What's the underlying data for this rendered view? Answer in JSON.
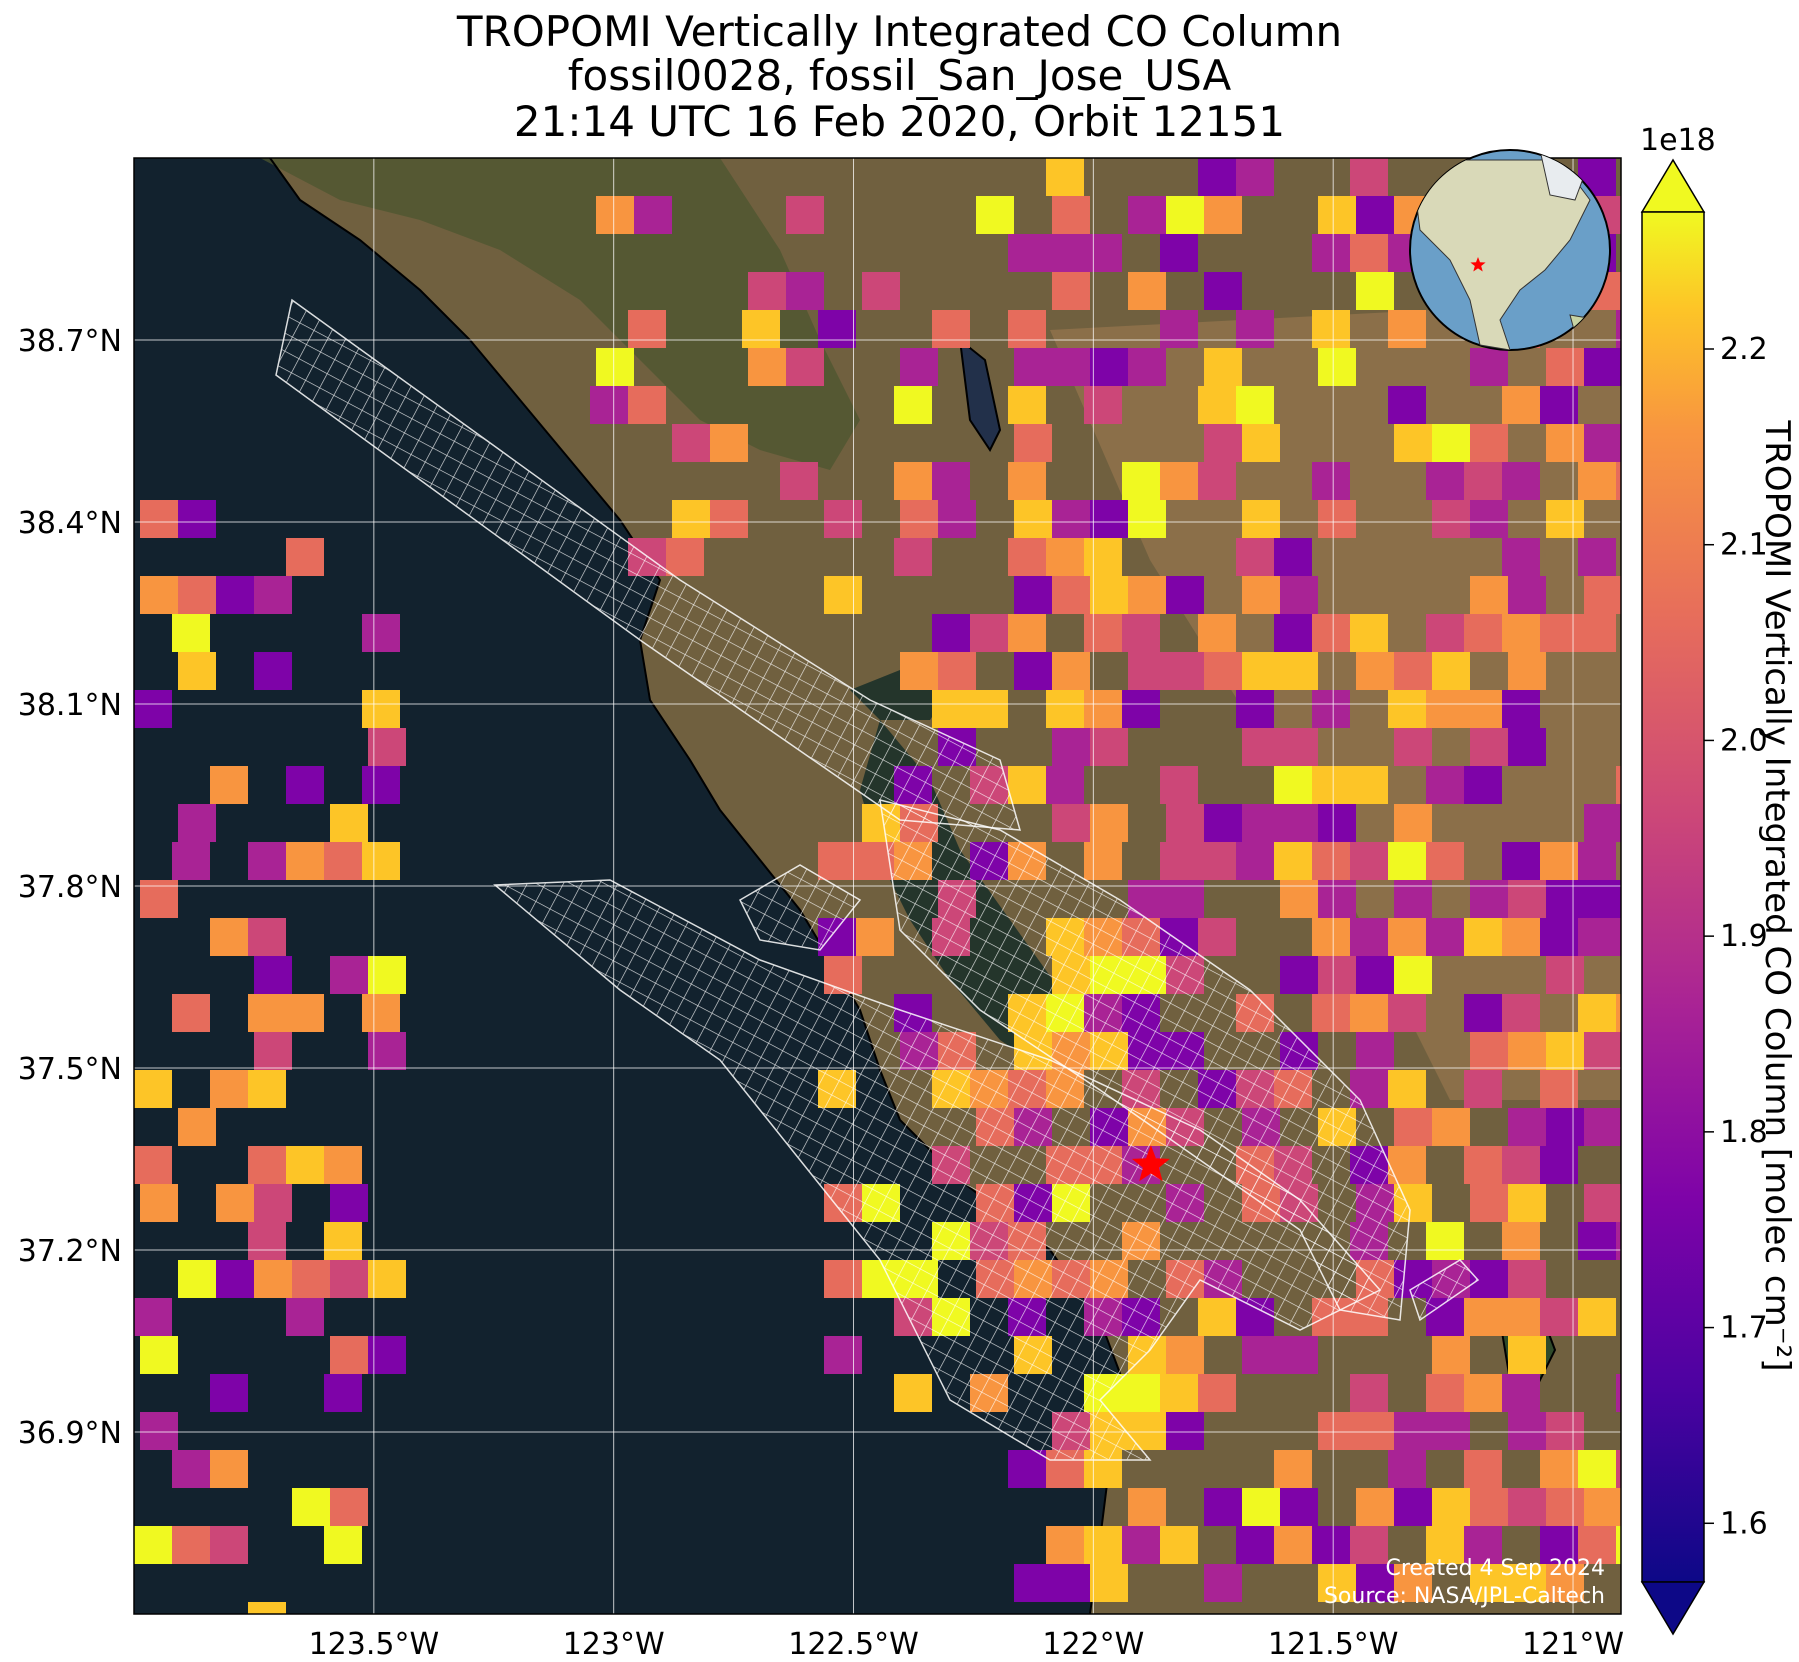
{
  "title": {
    "line1": "TROPOMI Vertically Integrated CO Column",
    "line2": "fossil0028, fossil_San_Jose_USA",
    "line3": "21:14 UTC 16 Feb 2020, Orbit 12151"
  },
  "map": {
    "lon_ticks": [
      "123.5°W",
      "123°W",
      "122.5°W",
      "122°W",
      "121.5°W",
      "121°W"
    ],
    "lon_values": [
      -123.5,
      -123.0,
      -122.5,
      -122.0,
      -121.5,
      -121.0
    ],
    "lat_ticks": [
      "38.7°N",
      "38.4°N",
      "38.1°N",
      "37.8°N",
      "37.5°N",
      "37.2°N",
      "36.9°N"
    ],
    "lat_values": [
      38.7,
      38.4,
      38.1,
      37.8,
      37.5,
      37.2,
      36.9
    ],
    "lon_range": [
      -124.0,
      -120.9
    ],
    "lat_range": [
      36.6,
      39.0
    ],
    "site_marker": {
      "name": "San Jose",
      "lon": -121.88,
      "lat": 37.34,
      "color": "#ff0000"
    },
    "credit_line1": "Created 4 Sep 2024",
    "credit_line2": "Source: NASA/JPL-Caltech",
    "colors": {
      "ocean": "#12222e",
      "land": "#6f5a3a",
      "grid": "#ffffff",
      "swath": "#ffffff",
      "coast": "#000000"
    }
  },
  "colorbar": {
    "exponent_label": "1e18",
    "label": "TROPOMI Vertically Integrated CO Column [molec cm⁻²]",
    "ticks": [
      "1.6",
      "1.7",
      "1.8",
      "1.9",
      "2.0",
      "2.1",
      "2.2"
    ],
    "tick_values": [
      1.6,
      1.7,
      1.8,
      1.9,
      2.0,
      2.1,
      2.2
    ],
    "range": [
      1.57,
      2.27
    ],
    "colormap": "plasma",
    "extend": "both"
  },
  "inset_globe": {
    "marker_color": "#ff0000"
  }
}
